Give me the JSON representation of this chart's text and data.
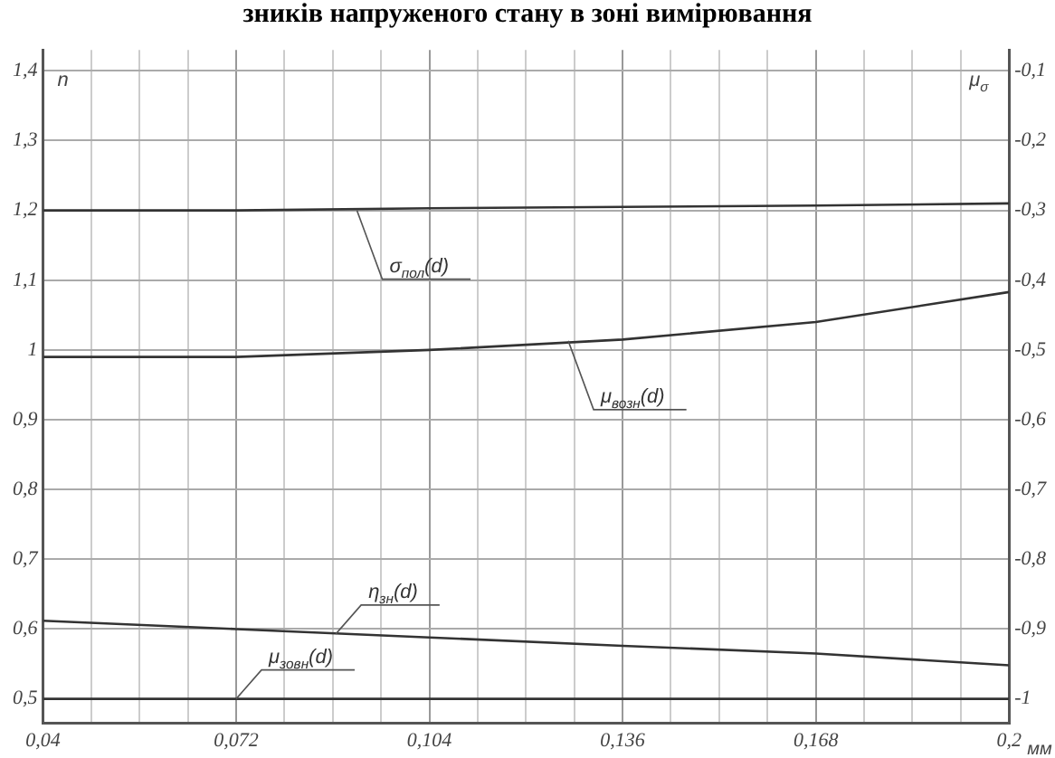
{
  "chart_data": {
    "type": "line",
    "title": "зників напруженого стану в зоні вимірювання",
    "xlabel": "мм",
    "ylabel": "n",
    "y2label": "μ$_{σ}$",
    "xlim": [
      0.04,
      0.2
    ],
    "xticks": [
      {
        "value": 0.04,
        "label": "0,04"
      },
      {
        "value": 0.048,
        "label": null
      },
      {
        "value": 0.056,
        "label": null
      },
      {
        "value": 0.064,
        "label": null
      },
      {
        "value": 0.072,
        "label": "0,072"
      },
      {
        "value": 0.08,
        "label": null
      },
      {
        "value": 0.088,
        "label": null
      },
      {
        "value": 0.096,
        "label": null
      },
      {
        "value": 0.104,
        "label": "0,104"
      },
      {
        "value": 0.112,
        "label": null
      },
      {
        "value": 0.12,
        "label": null
      },
      {
        "value": 0.128,
        "label": null
      },
      {
        "value": 0.136,
        "label": "0,136"
      },
      {
        "value": 0.144,
        "label": null
      },
      {
        "value": 0.152,
        "label": null
      },
      {
        "value": 0.16,
        "label": null
      },
      {
        "value": 0.168,
        "label": "0,168"
      },
      {
        "value": 0.176,
        "label": null
      },
      {
        "value": 0.184,
        "label": null
      },
      {
        "value": 0.192,
        "label": null
      },
      {
        "value": 0.2,
        "label": "0,2"
      }
    ],
    "ylim": [
      0.465,
      1.43
    ],
    "yticks": [
      {
        "value": 0.5,
        "label": "0,5"
      },
      {
        "value": 0.6,
        "label": "0,6"
      },
      {
        "value": 0.7,
        "label": "0,7"
      },
      {
        "value": 0.8,
        "label": "0,8"
      },
      {
        "value": 0.9,
        "label": "0,9"
      },
      {
        "value": 1,
        "label": "1"
      },
      {
        "value": 1.1,
        "label": "1,1"
      },
      {
        "value": 1.2,
        "label": "1,2"
      },
      {
        "value": 1.3,
        "label": "1,3"
      },
      {
        "value": 1.4,
        "label": "1,4"
      }
    ],
    "y2lim": [
      -1.035,
      -0.07
    ],
    "y2ticks": [
      {
        "value": -1,
        "label": "-1"
      },
      {
        "value": -0.9,
        "label": "-0,9"
      },
      {
        "value": -0.8,
        "label": "-0,8"
      },
      {
        "value": -0.7,
        "label": "-0,7"
      },
      {
        "value": -0.6,
        "label": "-0,6"
      },
      {
        "value": -0.5,
        "label": "-0,5"
      },
      {
        "value": -0.4,
        "label": "-0,4"
      },
      {
        "value": -0.3,
        "label": "-0,3"
      },
      {
        "value": -0.2,
        "label": "-0,2"
      },
      {
        "value": -0.1,
        "label": "-0,1"
      }
    ],
    "x": [
      0.04,
      0.072,
      0.104,
      0.136,
      0.168,
      0.2
    ],
    "series": [
      {
        "color": "#333333",
        "values": [
          1.2,
          1.2,
          1.203,
          1.205,
          1.207,
          1.21
        ]
      },
      {
        "color": "#333333",
        "values": [
          0.99,
          0.99,
          1.0,
          1.015,
          1.04,
          1.083
        ]
      },
      {
        "color": "#333333",
        "values": [
          0.612,
          0.6,
          0.588,
          0.576,
          0.565,
          0.548
        ]
      },
      {
        "color": "#333333",
        "values": [
          0.5,
          0.5,
          0.5,
          0.5,
          0.5,
          0.5
        ]
      }
    ],
    "annotations": [
      {
        "text": "σ$_{пол}$(d)",
        "x": 0.092,
        "y": 1.2
      },
      {
        "text": "μ$_{возн}$(d)",
        "x": 0.127,
        "y": 1.013
      },
      {
        "text": "η$_{зн}$(d)",
        "x": 0.0885,
        "y": 0.593
      },
      {
        "text": "μ$_{зовн}$(d)",
        "x": 0.072,
        "y": 0.5
      }
    ],
    "grid": true,
    "legend": false,
    "marker": "none",
    "line_style": "solid"
  }
}
